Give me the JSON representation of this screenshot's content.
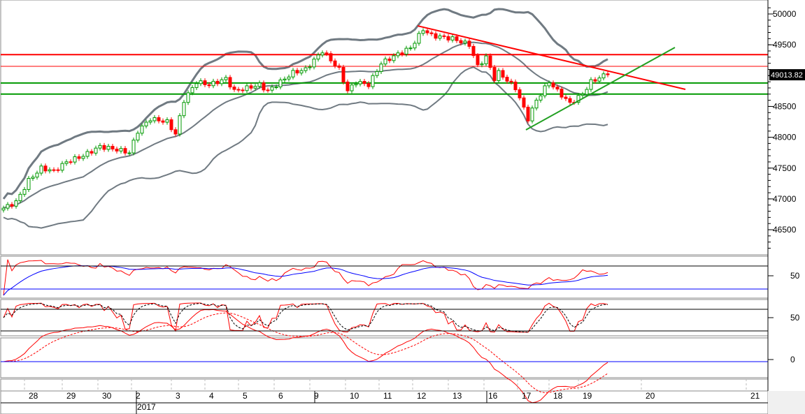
{
  "chart_data": {
    "type": "candlestick",
    "last_price_label": "49013.82",
    "y_ticks": [
      46500,
      47000,
      47500,
      48000,
      48500,
      49000,
      49500,
      50000
    ],
    "y_tick_labels": [
      "46500",
      "47000",
      "47500",
      "48000",
      "48500",
      "",
      "49500",
      "50000"
    ],
    "ylim": [
      46150,
      50150
    ],
    "indicator_labels": [
      "50",
      "50",
      "0"
    ],
    "date_labels": [
      {
        "t": 7,
        "label": "28"
      },
      {
        "t": 16,
        "label": "29"
      },
      {
        "t": 24.5,
        "label": "30"
      },
      {
        "t": 32.5,
        "label": "2"
      },
      {
        "t": 42,
        "label": "3"
      },
      {
        "t": 50,
        "label": "4"
      },
      {
        "t": 58,
        "label": "5"
      },
      {
        "t": 66.5,
        "label": "6"
      },
      {
        "t": 75,
        "label": "9"
      },
      {
        "t": 83.5,
        "label": "10"
      },
      {
        "t": 91.5,
        "label": "11"
      },
      {
        "t": 99.5,
        "label": "12"
      },
      {
        "t": 108,
        "label": "13"
      },
      {
        "t": 116.5,
        "label": "16"
      },
      {
        "t": 124.5,
        "label": "17"
      },
      {
        "t": 132,
        "label": "18"
      },
      {
        "t": 139,
        "label": "19"
      },
      {
        "t": 154,
        "label": "20"
      },
      {
        "t": 179,
        "label": "21"
      }
    ],
    "year_label": {
      "t": 32.5,
      "label": "2017"
    },
    "week_separators": [
      32.5,
      75,
      116
    ],
    "close_keypoints": [
      [
        0,
        46850
      ],
      [
        3,
        46950
      ],
      [
        6,
        47300
      ],
      [
        9,
        47500
      ],
      [
        12,
        47450
      ],
      [
        15,
        47600
      ],
      [
        19,
        47700
      ],
      [
        23,
        47850
      ],
      [
        27,
        47800
      ],
      [
        30,
        47750
      ],
      [
        32,
        48100
      ],
      [
        35,
        48300
      ],
      [
        39,
        48250
      ],
      [
        41,
        48050
      ],
      [
        43,
        48600
      ],
      [
        46,
        48900
      ],
      [
        49,
        48850
      ],
      [
        53,
        48950
      ],
      [
        55,
        48750
      ],
      [
        58,
        48800
      ],
      [
        61,
        48850
      ],
      [
        63,
        48750
      ],
      [
        66,
        48900
      ],
      [
        69,
        49050
      ],
      [
        72,
        49100
      ],
      [
        76,
        49400
      ],
      [
        78,
        49250
      ],
      [
        80,
        49100
      ],
      [
        82,
        48750
      ],
      [
        84,
        48900
      ],
      [
        87,
        48850
      ],
      [
        90,
        49200
      ],
      [
        94,
        49350
      ],
      [
        97,
        49450
      ],
      [
        100,
        49750
      ],
      [
        102,
        49650
      ],
      [
        107,
        49600
      ],
      [
        111,
        49500
      ],
      [
        113,
        49150
      ],
      [
        115,
        49300
      ],
      [
        117,
        48950
      ],
      [
        118,
        49050
      ],
      [
        122,
        48800
      ],
      [
        125,
        48300
      ],
      [
        127,
        48600
      ],
      [
        130,
        48900
      ],
      [
        132,
        48750
      ],
      [
        135,
        48550
      ],
      [
        138,
        48700
      ],
      [
        140,
        48900
      ],
      [
        143,
        49000
      ],
      [
        144,
        49013.82
      ]
    ],
    "horizontal_lines": [
      {
        "price": 49340,
        "color": "#ff0000"
      },
      {
        "price": 49150,
        "color": "#ff0000"
      },
      {
        "price": 48880,
        "color": "#009900"
      },
      {
        "price": 48700,
        "color": "#009900"
      }
    ],
    "trend_lines": [
      {
        "t1": 98.7,
        "p1": 49807,
        "t2": 162.5,
        "p2": 48777,
        "color": "#ff0000"
      },
      {
        "t1": 124.5,
        "p1": 48120,
        "t2": 160,
        "p2": 49457,
        "color": "#22a022"
      }
    ],
    "colors": {
      "up": "#009900",
      "down": "#ff0000",
      "bands": "#707a82",
      "signal": "#0000ff"
    }
  }
}
